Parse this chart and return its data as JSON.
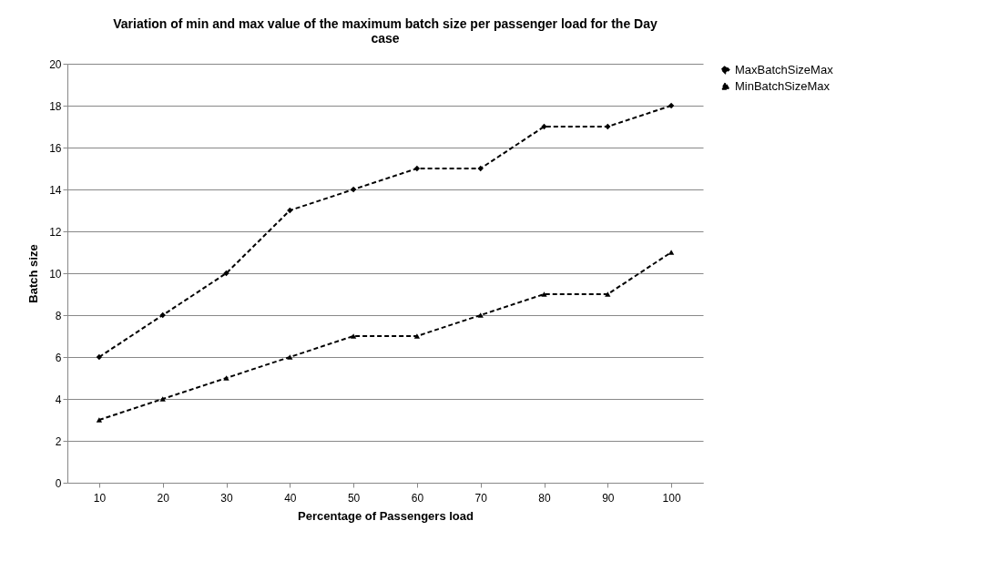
{
  "chart_data": {
    "type": "line",
    "title": "Variation of min and max value of the maximum batch size per passenger load for the Day case",
    "xlabel": "Percentage of Passengers load",
    "ylabel": "Batch size",
    "categories": [
      "10",
      "20",
      "30",
      "40",
      "50",
      "60",
      "70",
      "80",
      "90",
      "100"
    ],
    "series": [
      {
        "name": "MaxBatchSizeMax",
        "color": "#000000",
        "marker": "diamond",
        "line_style": "dashed",
        "values": [
          6,
          8,
          10,
          13,
          14,
          15,
          15,
          17,
          17,
          18
        ]
      },
      {
        "name": "MinBatchSizeMax",
        "color": "#000000",
        "marker": "triangle",
        "line_style": "dashed",
        "values": [
          3,
          4,
          5,
          6,
          7,
          7,
          8,
          9,
          9,
          11
        ]
      }
    ],
    "ylim": [
      0,
      20
    ],
    "yticks": [
      0,
      2,
      4,
      6,
      8,
      10,
      12,
      14,
      16,
      18,
      20
    ],
    "grid": "y",
    "legend": "right"
  }
}
